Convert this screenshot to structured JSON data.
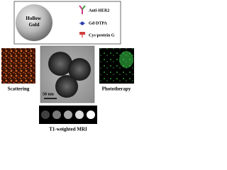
{
  "diagram": {
    "hollow_gold": "Hollow Gold",
    "legend": [
      "Anti-HER2",
      "Gd-DTPA",
      "Cys-protein G"
    ]
  },
  "panels": {
    "scattering": "Scattering",
    "scale_bar": "50 nm",
    "phototherapy": "Phototherapy",
    "mri": "T1-weighted MRI"
  }
}
